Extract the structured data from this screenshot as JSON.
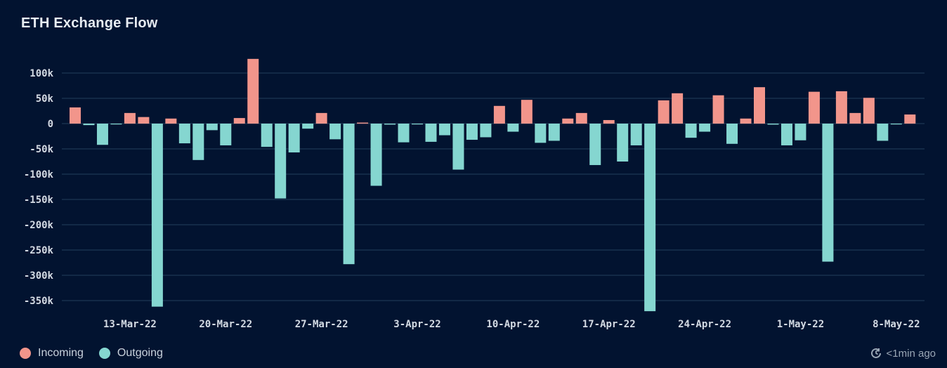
{
  "title": "ETH Exchange Flow",
  "legend": [
    {
      "label": "Incoming",
      "color": "#f2958b"
    },
    {
      "label": "Outgoing",
      "color": "#85d6d0"
    }
  ],
  "updated": "<1min ago",
  "chart_data": {
    "type": "bar",
    "title": "ETH Exchange Flow",
    "xlabel": "",
    "ylabel": "",
    "ylim": [
      -375000,
      125000
    ],
    "yticks": [
      100000,
      50000,
      0,
      -50000,
      -100000,
      -150000,
      -200000,
      -250000,
      -300000,
      -350000
    ],
    "ytick_labels": [
      "100k",
      "50k",
      "0",
      "-50k",
      "-100k",
      "-150k",
      "-200k",
      "-250k",
      "-300k",
      "-350k"
    ],
    "grid": true,
    "legend_position": "bottom-left",
    "start_date": "9-Mar-22",
    "xtick_labels": [
      {
        "index": 4,
        "label": "13-Mar-22"
      },
      {
        "index": 11,
        "label": "20-Mar-22"
      },
      {
        "index": 18,
        "label": "27-Mar-22"
      },
      {
        "index": 25,
        "label": "3-Apr-22"
      },
      {
        "index": 32,
        "label": "10-Apr-22"
      },
      {
        "index": 39,
        "label": "17-Apr-22"
      },
      {
        "index": 46,
        "label": "24-Apr-22"
      },
      {
        "index": 53,
        "label": "1-May-22"
      },
      {
        "index": 60,
        "label": "8-May-22"
      }
    ],
    "values": [
      32000,
      -3000,
      -42000,
      -1000,
      21000,
      13000,
      -362000,
      10000,
      -39000,
      -72000,
      -13000,
      -43000,
      11000,
      128000,
      -46000,
      -148000,
      -57000,
      -10000,
      21000,
      -31000,
      -278000,
      2000,
      -123000,
      -2000,
      -37000,
      -1000,
      -36000,
      -23000,
      -91000,
      -32000,
      -27000,
      35000,
      -16000,
      47000,
      -38000,
      -34000,
      10000,
      21000,
      -82000,
      7000,
      -75000,
      -43000,
      -371000,
      46000,
      60000,
      -28000,
      -16000,
      56000,
      -40000,
      10000,
      72000,
      -2000,
      -43000,
      -33000,
      63000,
      -273000,
      64000,
      21000,
      51000,
      -34000,
      -1000,
      18000
    ],
    "series_rule": "positive = Incoming, negative = Outgoing"
  }
}
